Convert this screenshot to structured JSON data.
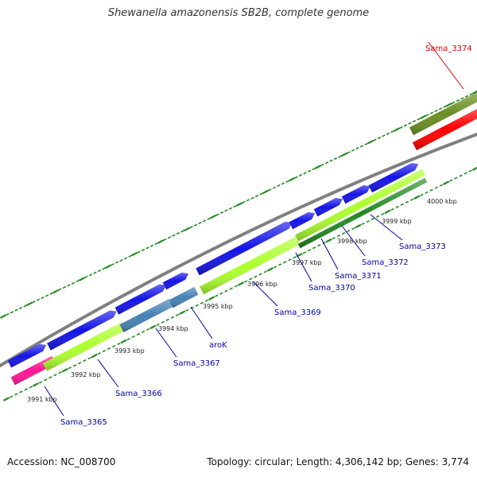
{
  "title": "Shewanella amazonensis SB2B, complete genome",
  "footer": {
    "accession": "Accession: NC_008700",
    "info": "Topology: circular; Length: 4,306,142 bp; Genes: 3,774"
  },
  "tick_labels": [
    "3991 kbp",
    "3992 kbp",
    "3993 kbp",
    "3994 kbp",
    "3995 kbp",
    "3996 kbp",
    "3997 kbp",
    "3998 kbp",
    "3999 kbp",
    "4000 kbp"
  ],
  "gene_labels": [
    "Sama_3374",
    "Sama_3373",
    "Sama_3372",
    "Sama_3371",
    "Sama_3370",
    "Sama_3369",
    "aroK",
    "Sama_3367",
    "Sama_3366",
    "Sama_3365"
  ],
  "colors": {
    "cds_forward": "#1414e6",
    "cds_reverse": "#ff0000",
    "gene_fill_1": "#ff1493",
    "gene_fill_2": "#adff2f",
    "gene_fill_3": "#4682b4",
    "gene_fill_4": "#228b22",
    "gene_fill_5": "#6b8e23",
    "label_forward": "#0000aa",
    "label_reverse": "#dd0000",
    "backbone": "#808080",
    "ticks": "#228b22"
  }
}
